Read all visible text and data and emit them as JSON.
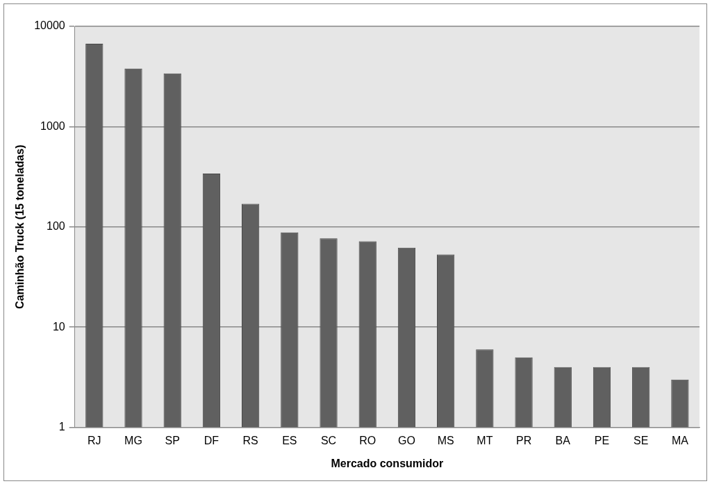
{
  "chart_data": {
    "type": "bar",
    "xlabel": "Mercado consumidor",
    "ylabel": "Caminhão Truck (15 toneladas)",
    "categories": [
      "RJ",
      "MG",
      "SP",
      "DF",
      "RS",
      "ES",
      "SC",
      "RO",
      "GO",
      "MS",
      "MT",
      "PR",
      "BA",
      "PE",
      "SE",
      "MA"
    ],
    "values": [
      6700,
      3800,
      3400,
      340,
      170,
      88,
      77,
      72,
      62,
      53,
      6,
      5,
      4,
      4,
      4,
      3
    ],
    "color": "#606060",
    "log": true,
    "ylim": [
      1,
      10000
    ],
    "yticks": [
      1,
      10,
      100,
      1000,
      10000
    ],
    "grid": "y",
    "legend": false
  }
}
